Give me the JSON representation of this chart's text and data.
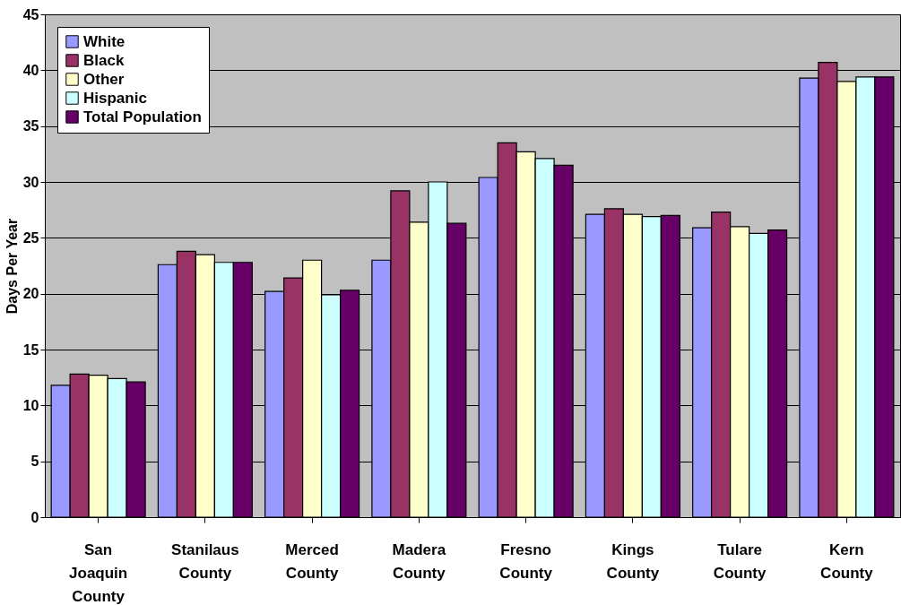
{
  "chart_data": {
    "type": "bar",
    "ylabel": "Days Per Year",
    "categories": [
      "San Joaquin County",
      "Stanilaus County",
      "Merced County",
      "Madera County",
      "Fresno County",
      "Kings County",
      "Tulare County",
      "Kern County"
    ],
    "series": [
      {
        "name": "White",
        "color": "#9999ff",
        "values": [
          11.8,
          22.6,
          20.2,
          23.0,
          30.4,
          27.1,
          25.9,
          39.3
        ]
      },
      {
        "name": "Black",
        "color": "#993366",
        "values": [
          12.8,
          23.8,
          21.4,
          29.2,
          33.5,
          27.6,
          27.3,
          40.7
        ]
      },
      {
        "name": "Other",
        "color": "#ffffcc",
        "values": [
          12.7,
          23.5,
          23.0,
          26.4,
          32.7,
          27.1,
          26.0,
          39.0
        ]
      },
      {
        "name": "Hispanic",
        "color": "#ccffff",
        "values": [
          12.4,
          22.8,
          19.9,
          30.0,
          32.1,
          26.9,
          25.4,
          39.4
        ]
      },
      {
        "name": "Total Population",
        "color": "#660066",
        "values": [
          12.1,
          22.8,
          20.3,
          26.3,
          31.5,
          27.0,
          25.7,
          39.4
        ]
      }
    ],
    "ylim": [
      0,
      45
    ],
    "yticks": [
      0,
      5,
      10,
      15,
      20,
      25,
      30,
      35,
      40,
      45
    ],
    "grid": "y",
    "legend": "top left"
  }
}
